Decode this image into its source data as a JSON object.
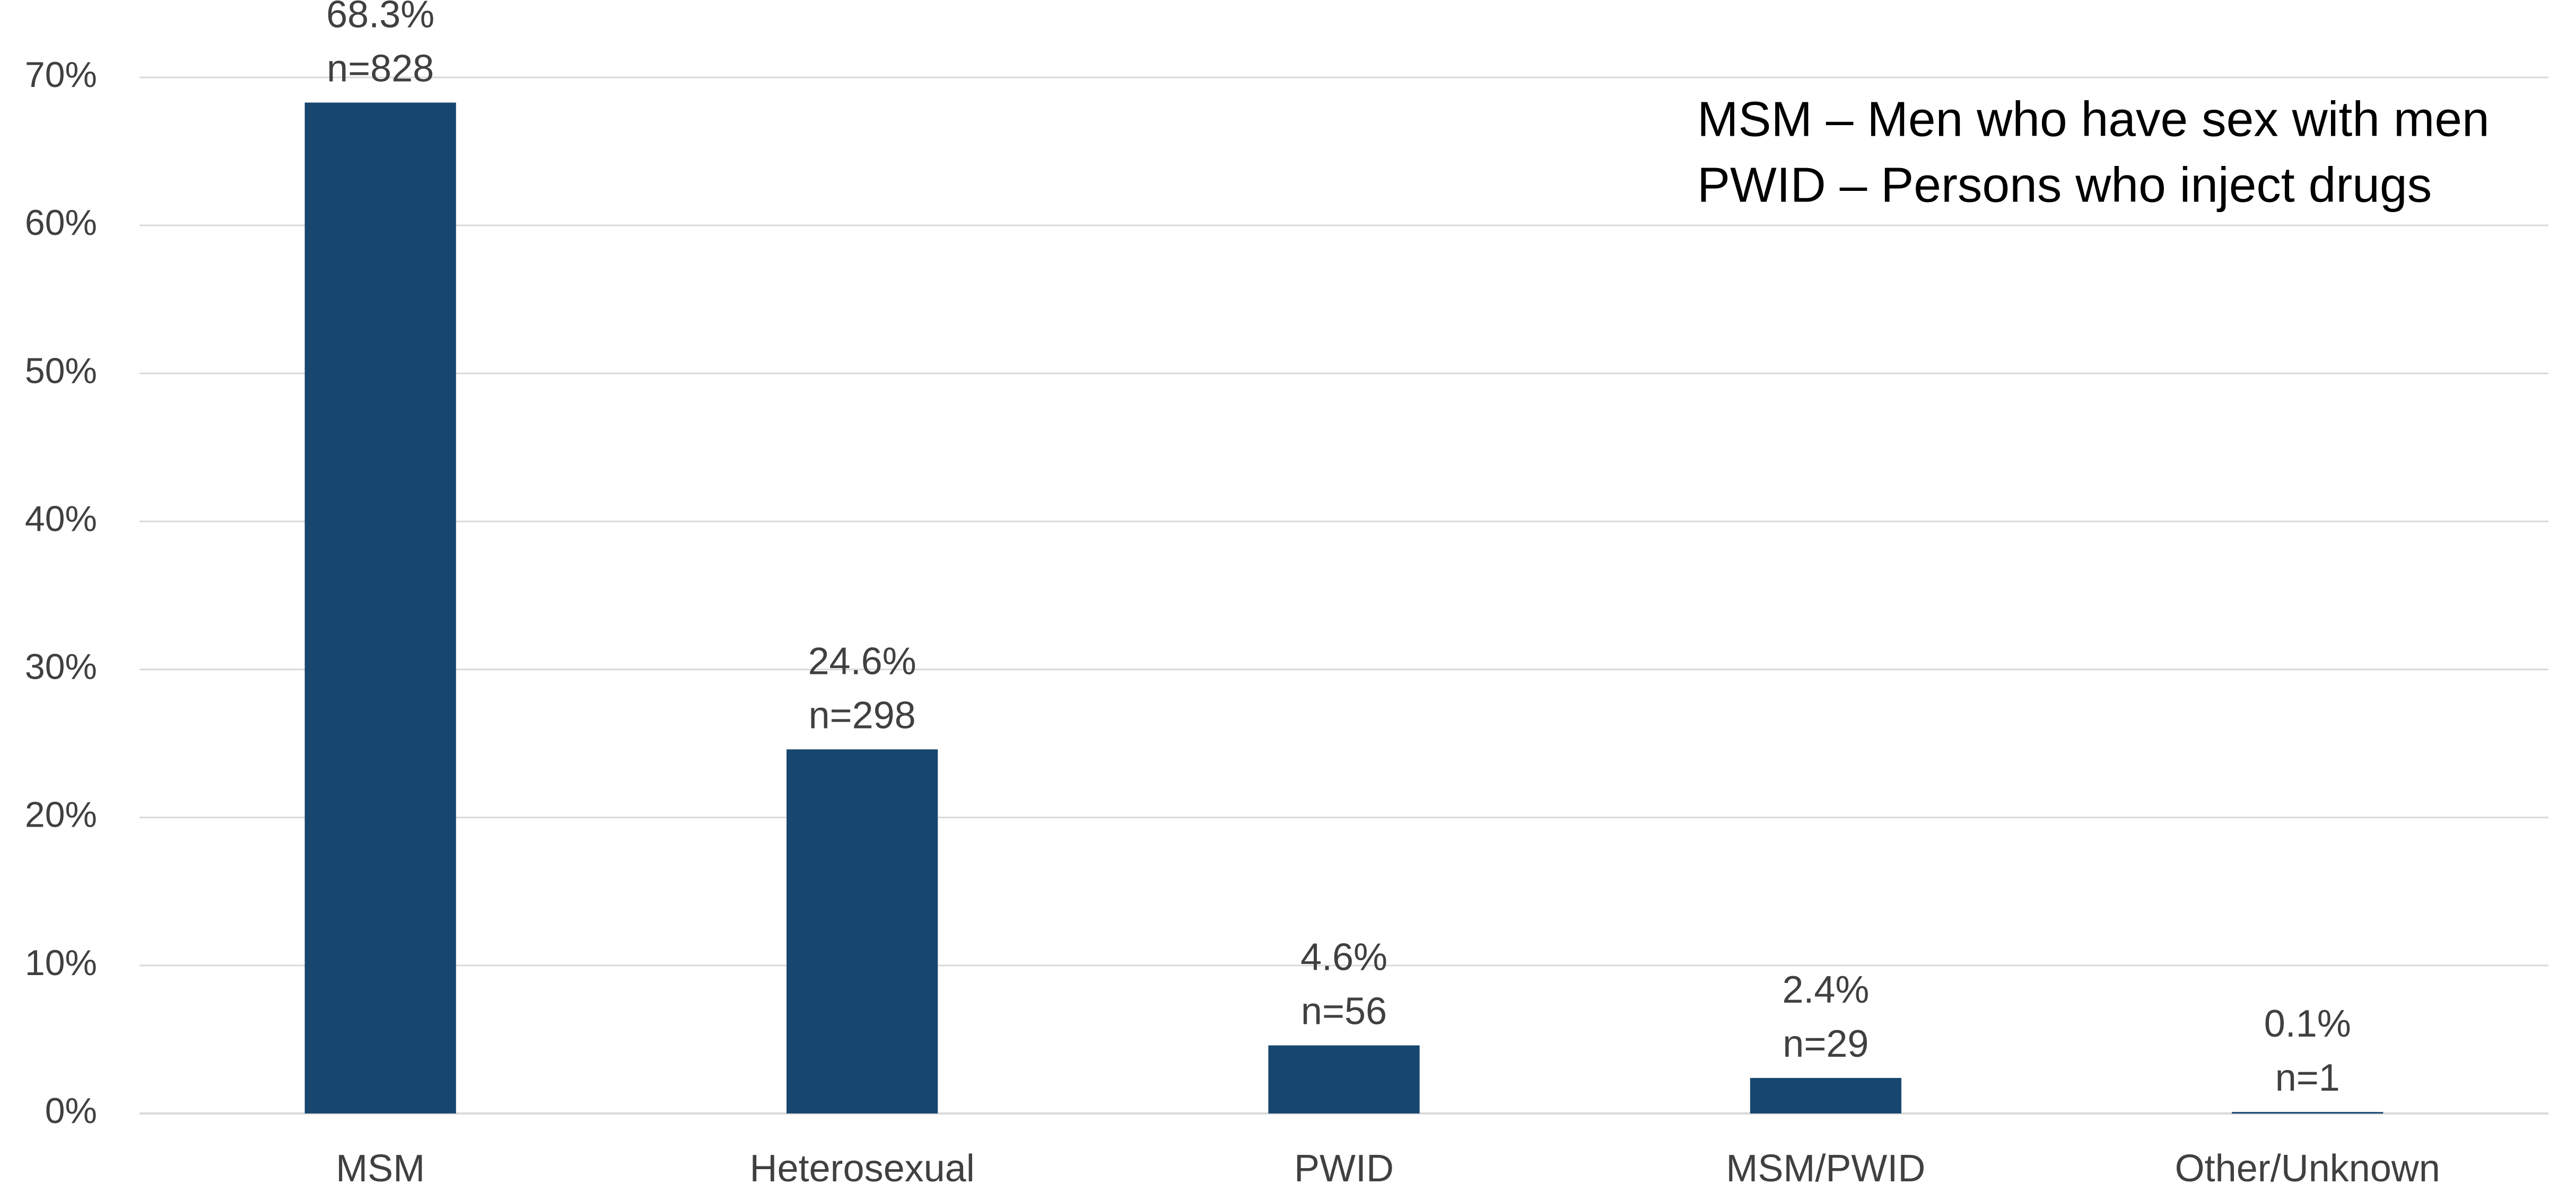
{
  "chart_data": {
    "type": "bar",
    "categories": [
      "MSM",
      "Heterosexual",
      "PWID",
      "MSM/PWID",
      "Other/Unknown"
    ],
    "values": [
      68.3,
      24.6,
      4.6,
      2.4,
      0.1
    ],
    "value_labels": [
      "68.3%",
      "24.6%",
      "4.6%",
      "2.4%",
      "0.1%"
    ],
    "count_labels": [
      "n=828",
      "n=298",
      "n=56",
      "n=29",
      "n=1"
    ],
    "color": "#17476f",
    "ylim": [
      0,
      70
    ],
    "yticks": [
      {
        "value": 0,
        "label": "0%"
      },
      {
        "value": 10,
        "label": "10%"
      },
      {
        "value": 20,
        "label": "20%"
      },
      {
        "value": 30,
        "label": "30%"
      },
      {
        "value": 40,
        "label": "40%"
      },
      {
        "value": 50,
        "label": "50%"
      },
      {
        "value": 60,
        "label": "60%"
      },
      {
        "value": 70,
        "label": "70%"
      }
    ],
    "grid": true,
    "annotations": [
      "MSM – Men who have sex with men",
      "PWID – Persons who inject drugs"
    ]
  }
}
